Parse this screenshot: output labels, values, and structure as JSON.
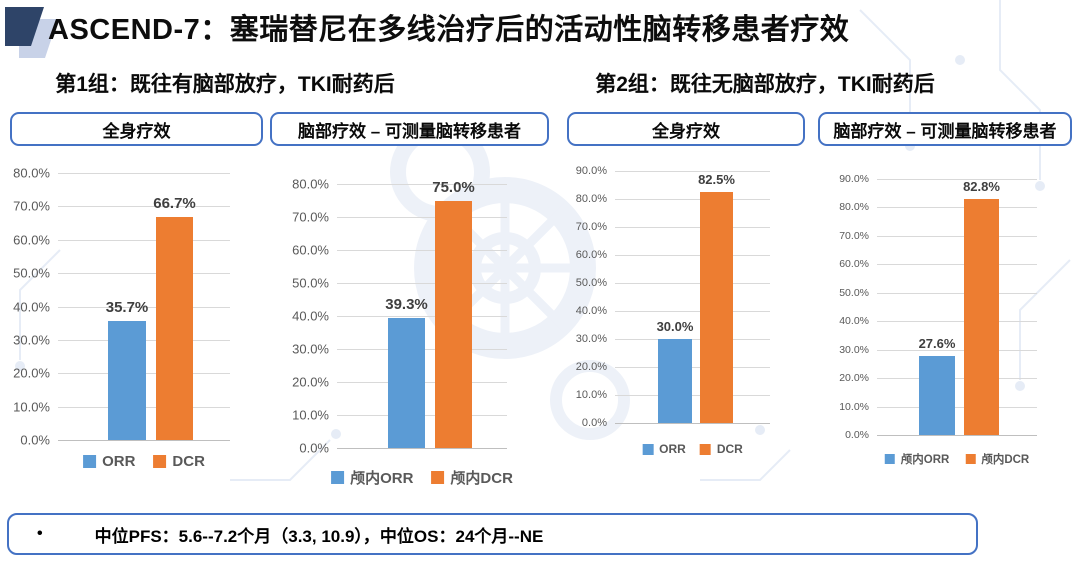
{
  "header": {
    "title": "ASCEND-7：塞瑞替尼在多线治疗后的活动性脑转移患者疗效"
  },
  "groups": [
    {
      "label": "第1组：既往有脑部放疗，TKI耐药后"
    },
    {
      "label": "第2组：既往无脑部放疗，TKI耐药后"
    }
  ],
  "panels": [
    {
      "title": "全身疗效"
    },
    {
      "title": "脑部疗效 – 可测量脑转移患者"
    },
    {
      "title": "全身疗效"
    },
    {
      "title": "脑部疗效 – 可测量脑转移患者"
    }
  ],
  "chart_data": [
    {
      "type": "bar",
      "title": "第1组 全身疗效",
      "categories": [
        "ORR",
        "DCR"
      ],
      "values": [
        35.7,
        66.7
      ],
      "data_labels": [
        "35.7%",
        "66.7%"
      ],
      "ylim": [
        0,
        80
      ],
      "ytick_step": 10,
      "ytick_suffix": "%",
      "grid": true,
      "legend_position": "bottom",
      "series_colors": [
        "#5B9BD5",
        "#ED7D31"
      ]
    },
    {
      "type": "bar",
      "title": "第1组 脑部疗效 – 可测量脑转移患者",
      "categories": [
        "颅内ORR",
        "颅内DCR"
      ],
      "values": [
        39.3,
        75.0
      ],
      "data_labels": [
        "39.3%",
        "75.0%"
      ],
      "ylim": [
        0,
        80
      ],
      "ytick_step": 10,
      "ytick_suffix": "%",
      "grid": true,
      "legend_position": "bottom",
      "series_colors": [
        "#5B9BD5",
        "#ED7D31"
      ]
    },
    {
      "type": "bar",
      "title": "第2组 全身疗效",
      "categories": [
        "ORR",
        "DCR"
      ],
      "values": [
        30.0,
        82.5
      ],
      "data_labels": [
        "30.0%",
        "82.5%"
      ],
      "ylim": [
        0,
        90
      ],
      "ytick_step": 10,
      "ytick_suffix": "%",
      "grid": true,
      "legend_position": "bottom",
      "series_colors": [
        "#5B9BD5",
        "#ED7D31"
      ]
    },
    {
      "type": "bar",
      "title": "第2组 脑部疗效 – 可测量脑转移患者",
      "categories": [
        "颅内ORR",
        "颅内DCR"
      ],
      "values": [
        27.6,
        82.8
      ],
      "data_labels": [
        "27.6%",
        "82.8%"
      ],
      "ylim": [
        0,
        90
      ],
      "ytick_step": 10,
      "ytick_suffix": "%",
      "grid": true,
      "legend_position": "bottom",
      "series_colors": [
        "#5B9BD5",
        "#ED7D31"
      ]
    }
  ],
  "footer": {
    "bullet": "•",
    "text": "中位PFS：5.6--7.2个月（3.3, 10.9），中位OS：24个月--NE"
  },
  "colors": {
    "bar_blue": "#5B9BD5",
    "bar_orange": "#ED7D31",
    "box_border": "#4472C4",
    "tick_text": "#595959",
    "logo_dark": "#2E4468",
    "logo_light": "#C8D2E8"
  }
}
